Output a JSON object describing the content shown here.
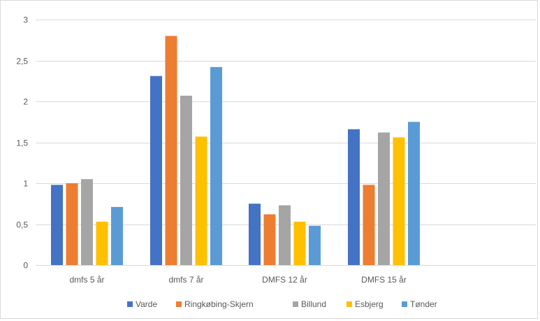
{
  "chart_data": {
    "type": "bar",
    "categories": [
      "dmfs 5 år",
      "dmfs 7 år",
      "DMFS 12 år",
      "DMFS 15 år"
    ],
    "series": [
      {
        "name": "Varde",
        "color": "#4472c4",
        "values": [
          0.98,
          2.31,
          0.75,
          1.66
        ]
      },
      {
        "name": "Ringkøbing-Skjern",
        "color": "#ed7d31",
        "values": [
          1.0,
          2.8,
          0.62,
          0.98
        ]
      },
      {
        "name": "Billund",
        "color": "#a5a5a5",
        "values": [
          1.05,
          2.07,
          0.73,
          1.62
        ]
      },
      {
        "name": "Esbjerg",
        "color": "#ffc000",
        "values": [
          0.53,
          1.57,
          0.53,
          1.56
        ]
      },
      {
        "name": "Tønder",
        "color": "#5b9bd5",
        "values": [
          0.71,
          2.42,
          0.48,
          1.75
        ]
      }
    ],
    "yticks": [
      "0",
      "0,5",
      "1",
      "1,5",
      "2",
      "2,5",
      "3"
    ],
    "ylim": [
      0,
      3
    ],
    "grid": true,
    "legend_position": "bottom"
  }
}
